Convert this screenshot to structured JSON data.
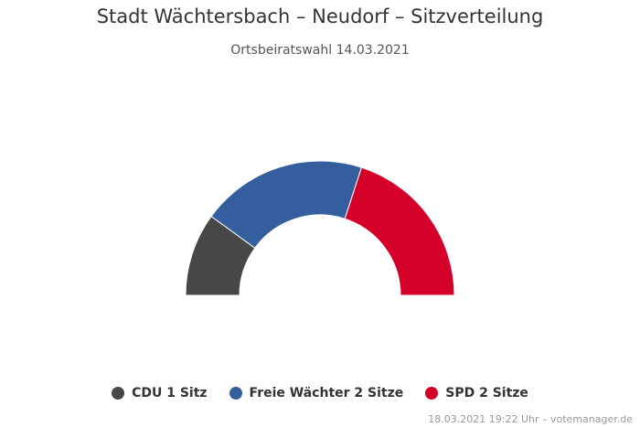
{
  "chart_data": {
    "type": "pie",
    "variant": "semi-donut (parliament seat distribution)",
    "title": "Stadt Wächtersbach – Neudorf – Sitzverteilung",
    "subtitle": "Ortsbeiratswahl 14.03.2021",
    "series": [
      {
        "name": "CDU",
        "seats": 1,
        "legend": "CDU 1 Sitz",
        "color": "#474747"
      },
      {
        "name": "Freie Wächter",
        "seats": 2,
        "legend": "Freie Wächter 2 Sitze",
        "color": "#345e9d"
      },
      {
        "name": "SPD",
        "seats": 2,
        "legend": "SPD 2 Sitze",
        "color": "#d50029"
      }
    ],
    "legend_position": "bottom"
  },
  "credits": "18.03.2021 19:22 Uhr – votemanager.de"
}
